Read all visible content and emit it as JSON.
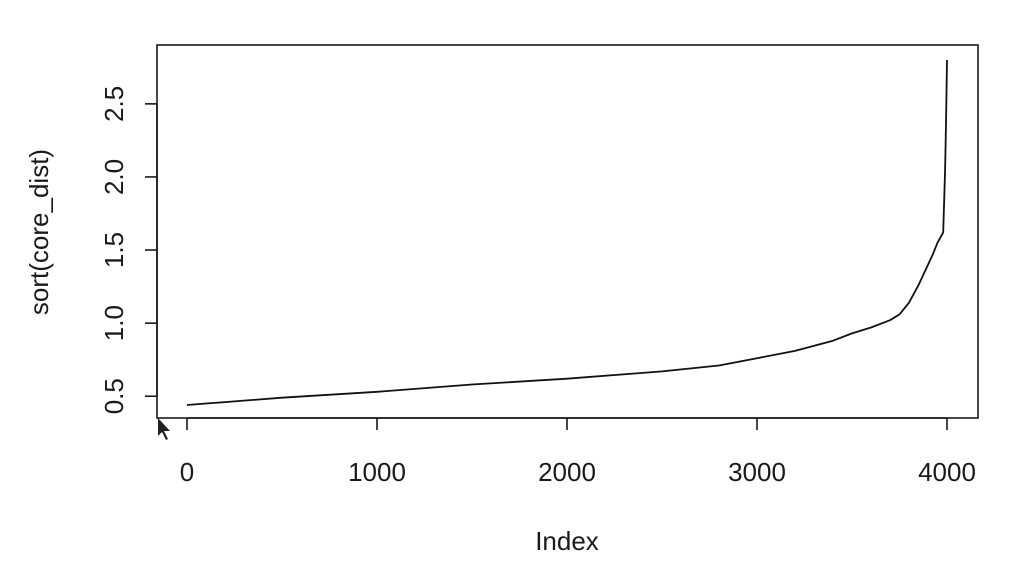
{
  "chart_data": {
    "type": "line",
    "xlabel": "Index",
    "ylabel": "sort(core_dist)",
    "xlim": [
      0,
      4000
    ],
    "ylim": [
      0.44,
      2.8
    ],
    "x_ticks": [
      0,
      1000,
      2000,
      3000,
      4000
    ],
    "x_tick_labels": [
      "0",
      "1000",
      "2000",
      "3000",
      "4000"
    ],
    "y_ticks": [
      0.5,
      1.0,
      1.5,
      2.0,
      2.5
    ],
    "y_tick_labels": [
      "0.5",
      "1.0",
      "1.5",
      "2.0",
      "2.5"
    ],
    "grid": false,
    "legend": "none",
    "line_color": "#111111",
    "series": [
      {
        "x": [
          0,
          100,
          200,
          500,
          1000,
          1500,
          2000,
          2500,
          2800,
          3000,
          3200,
          3400,
          3500,
          3600,
          3700,
          3750,
          3800,
          3850,
          3900,
          3925,
          3950,
          3980,
          3990,
          3995,
          4000
        ],
        "y": [
          0.44,
          0.45,
          0.46,
          0.49,
          0.53,
          0.58,
          0.62,
          0.67,
          0.71,
          0.76,
          0.81,
          0.88,
          0.93,
          0.97,
          1.02,
          1.06,
          1.14,
          1.26,
          1.4,
          1.47,
          1.55,
          1.62,
          2.05,
          2.4,
          2.8
        ]
      }
    ]
  }
}
